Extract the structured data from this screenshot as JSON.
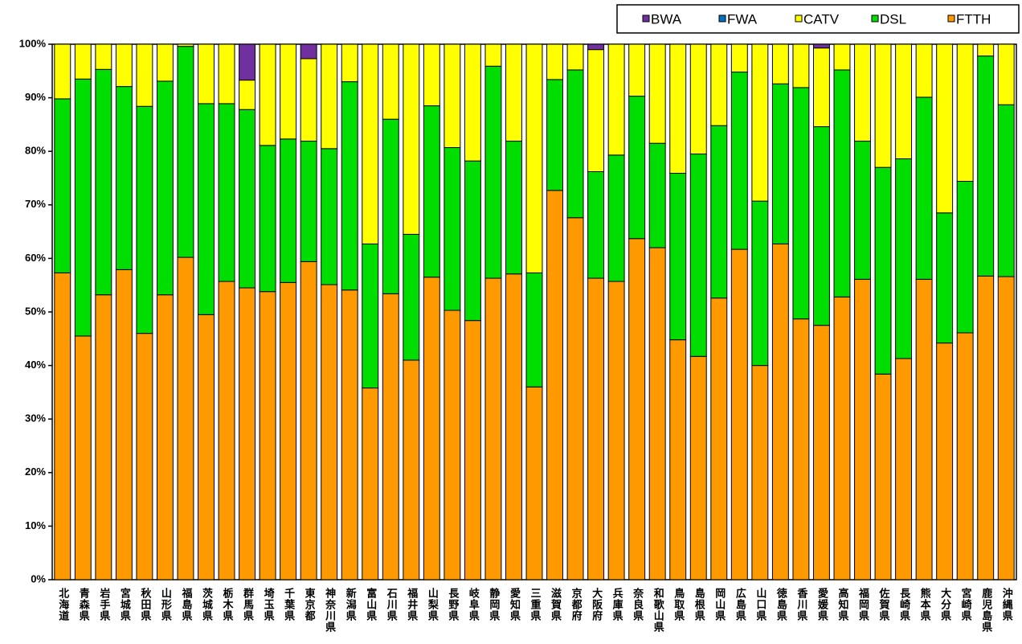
{
  "chart_data": {
    "type": "stacked_bar",
    "categories": [
      "北海道",
      "青森県",
      "岩手県",
      "宮城県",
      "秋田県",
      "山形県",
      "福島県",
      "茨城県",
      "栃木県",
      "群馬県",
      "埼玉県",
      "千葉県",
      "東京都",
      "神奈川県",
      "新潟県",
      "富山県",
      "石川県",
      "福井県",
      "山梨県",
      "長野県",
      "岐阜県",
      "静岡県",
      "愛知県",
      "三重県",
      "滋賀県",
      "京都府",
      "大阪府",
      "兵庫県",
      "奈良県",
      "和歌山県",
      "鳥取県",
      "島根県",
      "岡山県",
      "広島県",
      "山口県",
      "徳島県",
      "香川県",
      "愛媛県",
      "高知県",
      "福岡県",
      "佐賀県",
      "長崎県",
      "熊本県",
      "大分県",
      "宮崎県",
      "鹿児島県",
      "沖縄県"
    ],
    "series": [
      {
        "name": "BWA",
        "color": "#7030a0",
        "values": [
          0,
          0,
          0,
          0,
          0,
          0,
          0,
          0,
          0,
          6.7,
          0,
          0,
          2.7,
          0,
          0,
          0,
          0,
          0,
          0,
          0,
          0,
          0,
          0,
          0,
          0,
          0,
          1.0,
          0,
          0,
          0,
          0,
          0,
          0,
          0,
          0,
          0,
          0,
          0.7,
          0,
          0,
          0,
          0,
          0,
          0,
          0,
          0,
          0
        ]
      },
      {
        "name": "FWA",
        "color": "#0070c0",
        "values": [
          0,
          0,
          0,
          0,
          0,
          0,
          0,
          0,
          0,
          0,
          0,
          0,
          0,
          0,
          0,
          0,
          0,
          0,
          0,
          0,
          0,
          0,
          0,
          0,
          0,
          0,
          0,
          0,
          0,
          0,
          0,
          0,
          0,
          0,
          0,
          0,
          0,
          0,
          0,
          0,
          0,
          0,
          0,
          0,
          0,
          0,
          0
        ]
      },
      {
        "name": "CATV",
        "color": "#ffff00",
        "values": [
          10.2,
          6.5,
          4.7,
          7.9,
          11.6,
          6.9,
          0.4,
          11.1,
          11.1,
          5.5,
          18.9,
          17.7,
          15.4,
          19.5,
          7.0,
          37.3,
          14.0,
          35.5,
          11.5,
          19.3,
          21.8,
          4.1,
          18.1,
          42.7,
          6.6,
          4.8,
          22.8,
          20.7,
          9.7,
          18.5,
          24.1,
          20.5,
          15.2,
          5.2,
          29.3,
          7.4,
          8.1,
          14.7,
          4.8,
          18.1,
          23.0,
          21.4,
          9.9,
          31.5,
          25.6,
          2.2,
          11.3
        ]
      },
      {
        "name": "DSL",
        "color": "#00dd00",
        "values": [
          32.5,
          48.0,
          42.1,
          34.2,
          42.4,
          39.9,
          39.4,
          39.4,
          33.2,
          33.3,
          27.3,
          26.8,
          22.5,
          25.4,
          38.9,
          26.9,
          32.6,
          23.5,
          32.0,
          30.4,
          29.8,
          39.6,
          24.8,
          21.3,
          20.7,
          27.6,
          19.9,
          23.6,
          26.6,
          19.5,
          31.1,
          37.8,
          32.2,
          33.1,
          30.7,
          29.9,
          43.2,
          37.1,
          42.4,
          25.8,
          38.6,
          37.3,
          34.0,
          24.3,
          28.3,
          41.1,
          32.1
        ]
      },
      {
        "name": "FTTH",
        "color": "#ff9900",
        "values": [
          57.3,
          45.5,
          53.2,
          57.9,
          46.0,
          53.2,
          60.2,
          49.5,
          55.7,
          54.5,
          53.8,
          55.5,
          59.4,
          55.1,
          54.1,
          35.8,
          53.4,
          41.0,
          56.5,
          50.3,
          48.4,
          56.3,
          57.1,
          36.0,
          72.7,
          67.6,
          56.3,
          55.7,
          63.7,
          62.0,
          44.8,
          41.7,
          52.6,
          61.7,
          40.0,
          62.7,
          48.7,
          47.5,
          52.8,
          56.1,
          38.4,
          41.3,
          56.1,
          44.2,
          46.1,
          56.7,
          56.6
        ]
      }
    ],
    "ylim": [
      0,
      100
    ],
    "yticks": [
      {
        "value": 0,
        "label": "0%"
      },
      {
        "value": 10,
        "label": "10%"
      },
      {
        "value": 20,
        "label": "20%"
      },
      {
        "value": 30,
        "label": "30%"
      },
      {
        "value": 40,
        "label": "40%"
      },
      {
        "value": 50,
        "label": "50%"
      },
      {
        "value": 60,
        "label": "60%"
      },
      {
        "value": 70,
        "label": "70%"
      },
      {
        "value": 80,
        "label": "80%"
      },
      {
        "value": 90,
        "label": "90%"
      },
      {
        "value": 100,
        "label": "100%"
      }
    ],
    "legend": "top-right"
  }
}
